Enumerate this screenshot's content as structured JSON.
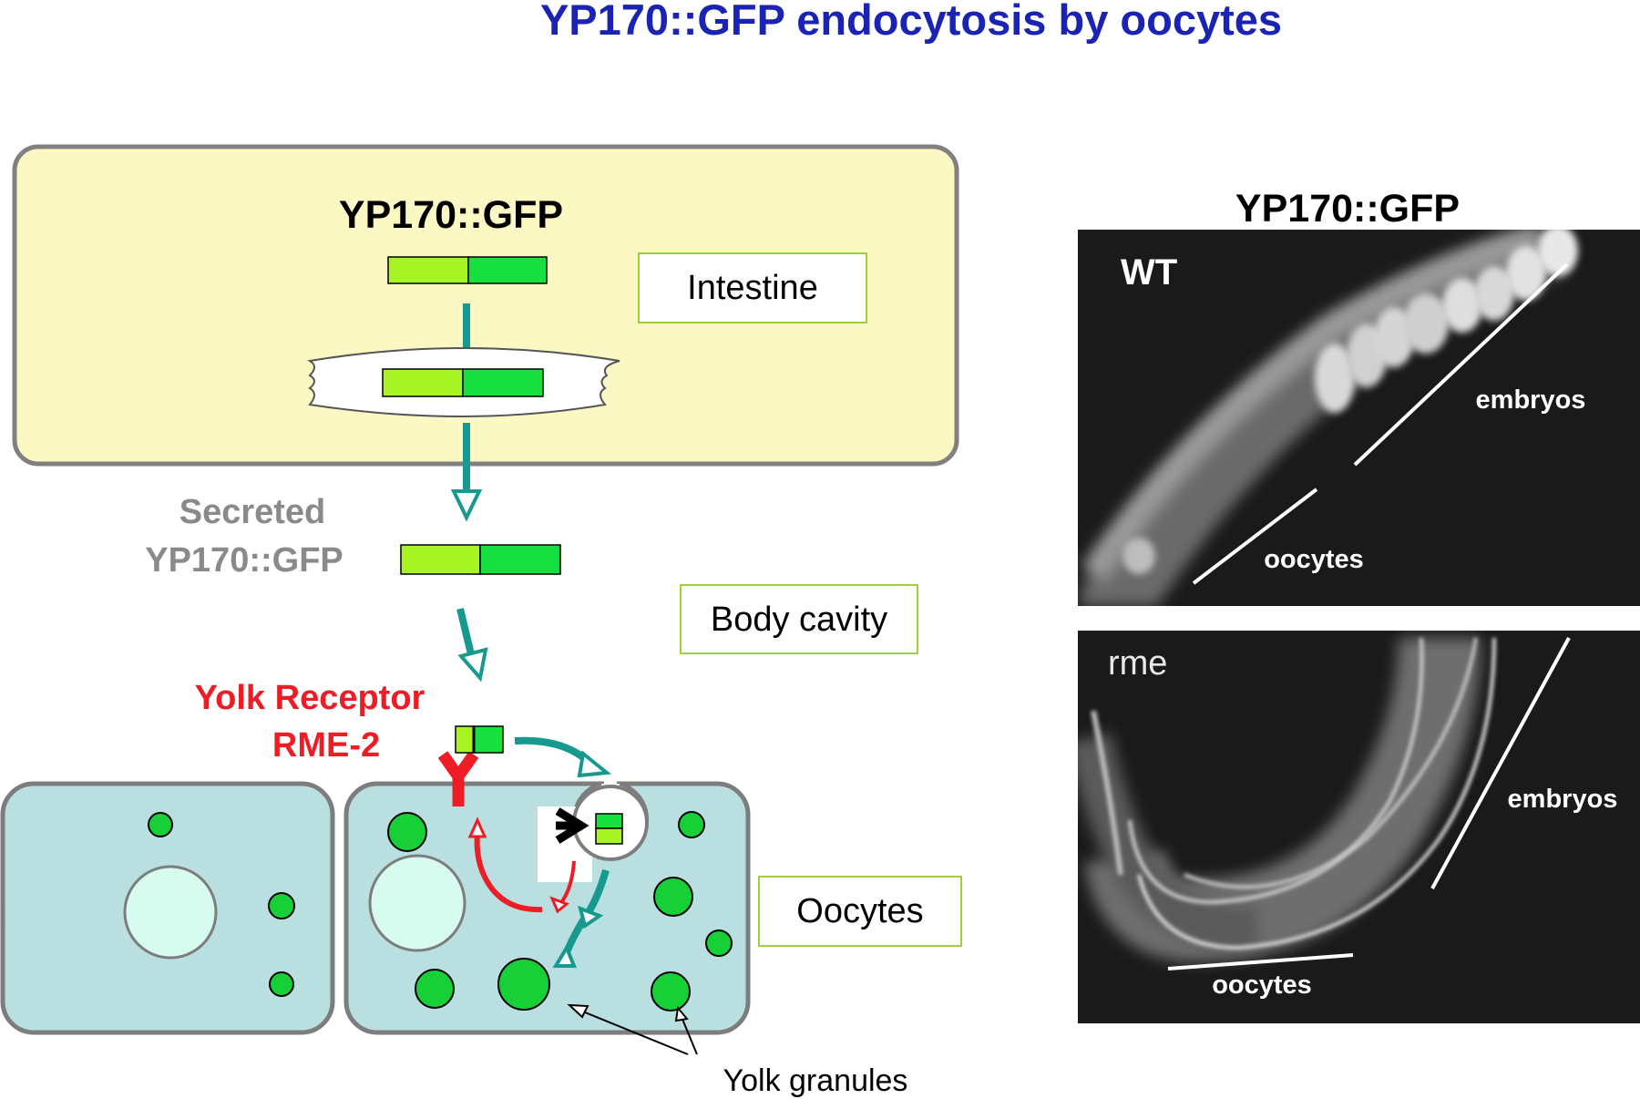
{
  "title": "YP170::GFP endocytosis by oocytes",
  "colors": {
    "title": "#1a23b4",
    "receptor": "#ee1c24",
    "arrow_teal": "#16998f",
    "arrow_red": "#ee1c24",
    "intestine_fill": "#fbf8c4",
    "oocyte_fill": "#b9dfe0",
    "nucleus_fill": "#d8fbef",
    "granule_fill": "#17cf36",
    "fusion_left": "#a7f425",
    "fusion_right": "#16df40",
    "label_box_border": "#9fcf3a",
    "secreted_gray": "#8a8a8a",
    "micrograph_bg": "#1a1a1a"
  },
  "diagram": {
    "fusion_label": "YP170::GFP",
    "intestine_label": "Intestine",
    "secreted_label_line1": "Secreted",
    "secreted_label_line2": "YP170::GFP",
    "body_cavity_label": "Body cavity",
    "receptor_label_line1": "Yolk Receptor",
    "receptor_label_line2": "RME-2",
    "oocytes_label": "Oocytes",
    "yolk_granules_label": "Yolk granules"
  },
  "micrographs": {
    "header": "YP170::GFP",
    "panels": [
      {
        "strain": "WT",
        "embryos_label": "embryos",
        "oocytes_label": "oocytes"
      },
      {
        "strain": "rme",
        "embryos_label": "embryos",
        "oocytes_label": "oocytes"
      }
    ]
  }
}
